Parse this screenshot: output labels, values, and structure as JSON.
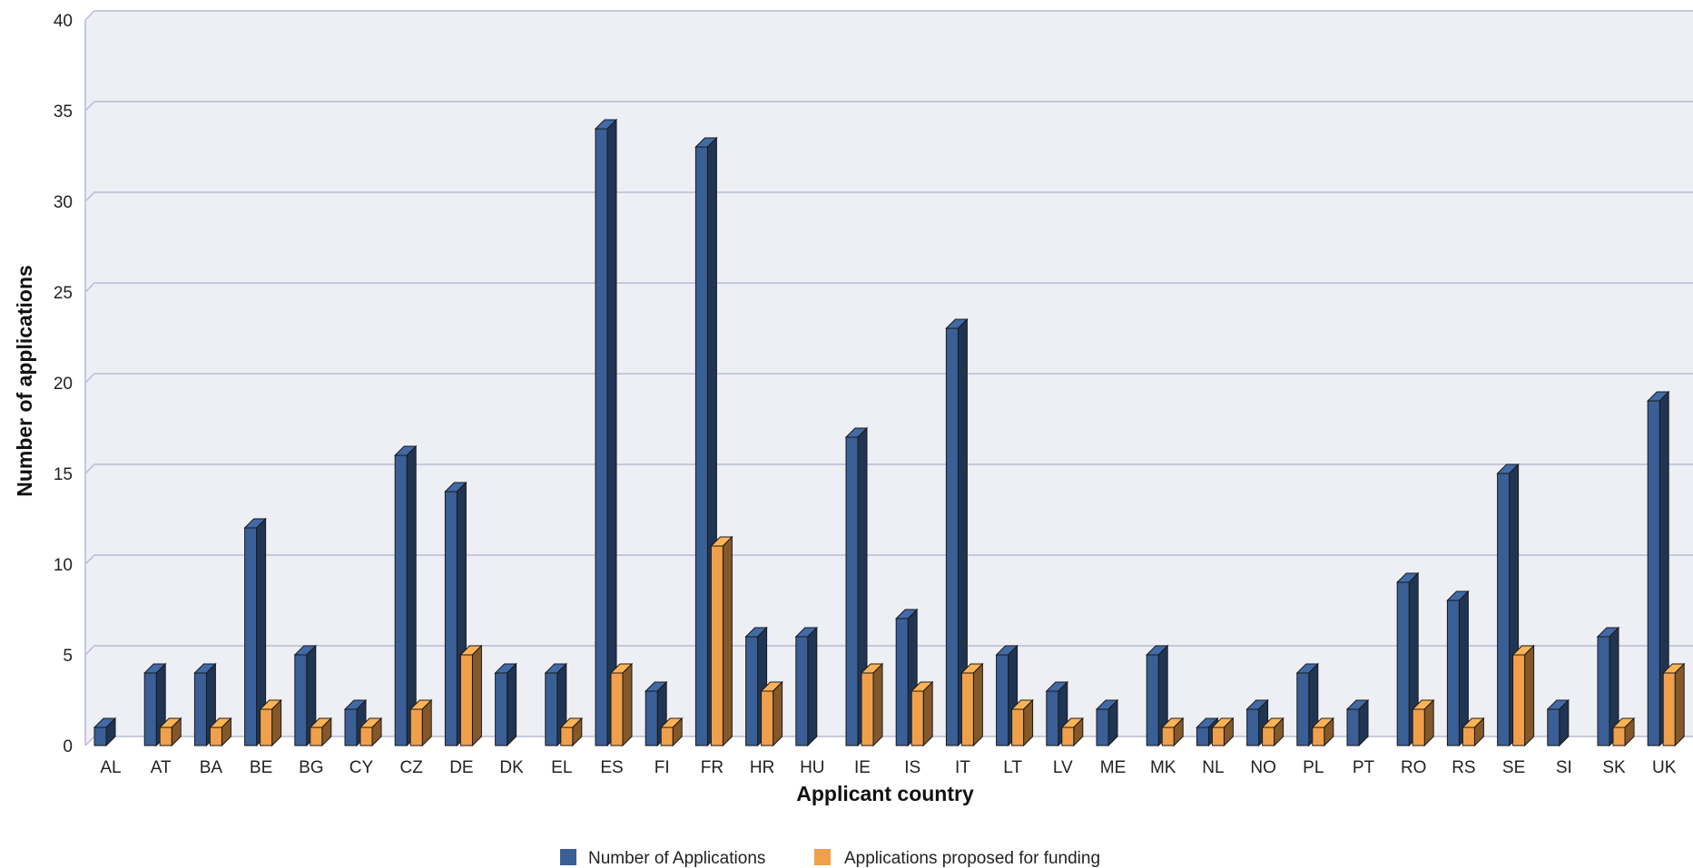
{
  "chart_data": {
    "type": "bar",
    "title": "",
    "xlabel": "Applicant country",
    "ylabel": "Number of applications",
    "ylim": [
      0,
      40
    ],
    "yticks": [
      0,
      5,
      10,
      15,
      20,
      25,
      30,
      35,
      40
    ],
    "grid": true,
    "legend_position": "bottom",
    "style": "3d-clustered",
    "categories": [
      "AL",
      "AT",
      "BA",
      "BE",
      "BG",
      "CY",
      "CZ",
      "DE",
      "DK",
      "EL",
      "ES",
      "FI",
      "FR",
      "HR",
      "HU",
      "IE",
      "IS",
      "IT",
      "LT",
      "LV",
      "ME",
      "MK",
      "NL",
      "NO",
      "PL",
      "PT",
      "RO",
      "RS",
      "SE",
      "SI",
      "SK",
      "UK"
    ],
    "series": [
      {
        "name": "Number of Applications",
        "color": "#3a5f96",
        "values": [
          1,
          4,
          4,
          12,
          5,
          2,
          16,
          14,
          4,
          4,
          34,
          3,
          33,
          6,
          6,
          17,
          7,
          23,
          5,
          3,
          2,
          5,
          1,
          2,
          4,
          2,
          9,
          8,
          15,
          2,
          6,
          19
        ]
      },
      {
        "name": "Applications proposed for funding",
        "color": "#f0a04b",
        "values": [
          0,
          1,
          1,
          2,
          1,
          1,
          2,
          5,
          0,
          1,
          4,
          1,
          11,
          3,
          0,
          4,
          3,
          4,
          2,
          1,
          0,
          1,
          1,
          1,
          1,
          0,
          2,
          1,
          5,
          0,
          1,
          4
        ]
      }
    ]
  }
}
